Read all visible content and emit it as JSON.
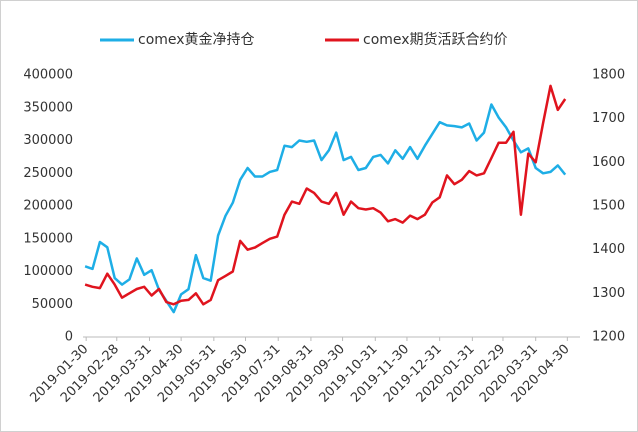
{
  "chart_data": {
    "type": "line",
    "x": [
      "2019-01-29",
      "2019-02-05",
      "2019-02-12",
      "2019-02-19",
      "2019-02-26",
      "2019-03-05",
      "2019-03-12",
      "2019-03-19",
      "2019-03-26",
      "2019-04-02",
      "2019-04-09",
      "2019-04-16",
      "2019-04-23",
      "2019-04-30",
      "2019-05-07",
      "2019-05-14",
      "2019-05-21",
      "2019-05-28",
      "2019-06-04",
      "2019-06-11",
      "2019-06-18",
      "2019-06-25",
      "2019-07-02",
      "2019-07-09",
      "2019-07-16",
      "2019-07-23",
      "2019-07-30",
      "2019-08-06",
      "2019-08-13",
      "2019-08-20",
      "2019-08-27",
      "2019-09-03",
      "2019-09-10",
      "2019-09-17",
      "2019-09-24",
      "2019-10-01",
      "2019-10-08",
      "2019-10-15",
      "2019-10-22",
      "2019-10-29",
      "2019-11-05",
      "2019-11-12",
      "2019-11-19",
      "2019-11-26",
      "2019-12-03",
      "2019-12-10",
      "2019-12-17",
      "2019-12-24",
      "2019-12-31",
      "2020-01-07",
      "2020-01-14",
      "2020-01-21",
      "2020-01-28",
      "2020-02-04",
      "2020-02-11",
      "2020-02-18",
      "2020-02-25",
      "2020-03-03",
      "2020-03-10",
      "2020-03-17",
      "2020-03-24",
      "2020-03-31",
      "2020-04-07",
      "2020-04-14",
      "2020-04-21",
      "2020-04-28"
    ],
    "series": [
      {
        "name": "comex黄金净持仓",
        "color": "#1eaee6",
        "axis": "y",
        "values": [
          108000,
          104000,
          145000,
          137000,
          90000,
          80000,
          88000,
          120000,
          95000,
          102000,
          72000,
          55000,
          38000,
          65000,
          73000,
          125000,
          90000,
          86000,
          155000,
          185000,
          205000,
          240000,
          258000,
          245000,
          245000,
          252000,
          255000,
          292000,
          290000,
          300000,
          298000,
          300000,
          270000,
          285000,
          312000,
          270000,
          275000,
          255000,
          258000,
          275000,
          278000,
          265000,
          285000,
          272000,
          290000,
          272000,
          292000,
          310000,
          328000,
          323000,
          322000,
          320000,
          326000,
          300000,
          312000,
          355000,
          335000,
          320000,
          300000,
          282000,
          288000,
          258000,
          250000,
          252000,
          262000,
          248000
        ]
      },
      {
        "name": "comex期货活跃合约价",
        "color": "#e0141e",
        "axis": "y2",
        "values": [
          1320,
          1315,
          1312,
          1345,
          1320,
          1290,
          1300,
          1310,
          1315,
          1295,
          1310,
          1280,
          1275,
          1283,
          1285,
          1300,
          1275,
          1285,
          1330,
          1340,
          1350,
          1420,
          1400,
          1405,
          1415,
          1425,
          1430,
          1480,
          1510,
          1505,
          1540,
          1530,
          1510,
          1505,
          1530,
          1480,
          1510,
          1495,
          1492,
          1495,
          1485,
          1465,
          1470,
          1462,
          1478,
          1470,
          1480,
          1508,
          1520,
          1570,
          1550,
          1560,
          1580,
          1570,
          1575,
          1610,
          1645,
          1645,
          1670,
          1480,
          1620,
          1600,
          1690,
          1775,
          1720,
          1745
        ]
      }
    ],
    "xlim": [
      "2019-01-27",
      "2020-05-12"
    ],
    "xticks": [
      "2019-01-30",
      "2019-02-28",
      "2019-03-31",
      "2019-04-30",
      "2019-05-31",
      "2019-06-30",
      "2019-07-31",
      "2019-08-31",
      "2019-09-30",
      "2019-10-31",
      "2019-11-30",
      "2019-12-31",
      "2020-01-31",
      "2020-02-29",
      "2020-03-31",
      "2020-04-30"
    ],
    "ylim": [
      0,
      400000
    ],
    "yticks": [
      0,
      50000,
      100000,
      150000,
      200000,
      250000,
      300000,
      350000,
      400000
    ],
    "y2lim": [
      1200,
      1800
    ],
    "y2ticks": [
      1200,
      1300,
      1400,
      1500,
      1600,
      1700,
      1800
    ],
    "legend": "top"
  }
}
